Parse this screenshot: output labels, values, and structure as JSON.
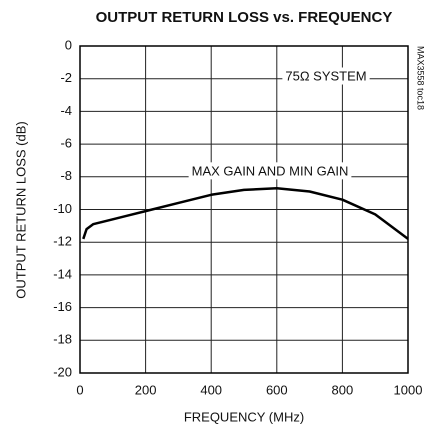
{
  "chart_data": {
    "type": "line",
    "title": "OUTPUT RETURN LOSS vs. FREQUENCY",
    "xlabel": "FREQUENCY (MHz)",
    "ylabel": "OUTPUT RETURN LOSS (dB)",
    "annotations": [
      "75Ω SYSTEM",
      "MAX GAIN AND MIN GAIN"
    ],
    "side_label": "MAX3558 toc18",
    "x": [
      10,
      20,
      40,
      100,
      200,
      300,
      400,
      500,
      600,
      700,
      800,
      900,
      1000
    ],
    "series": [
      {
        "name": "MAX GAIN AND MIN GAIN",
        "color": "#000000",
        "values": [
          -11.8,
          -11.2,
          -10.9,
          -10.6,
          -10.1,
          -9.6,
          -9.1,
          -8.8,
          -8.7,
          -8.9,
          -9.4,
          -10.3,
          -11.8
        ]
      }
    ],
    "xlim": [
      0,
      1000
    ],
    "xticks": [
      0,
      200,
      400,
      600,
      800,
      1000
    ],
    "ylim": [
      -20,
      0
    ],
    "yticks": [
      0,
      -2,
      -4,
      -6,
      -8,
      -10,
      -12,
      -14,
      -16,
      -18,
      -20
    ],
    "grid": true
  }
}
